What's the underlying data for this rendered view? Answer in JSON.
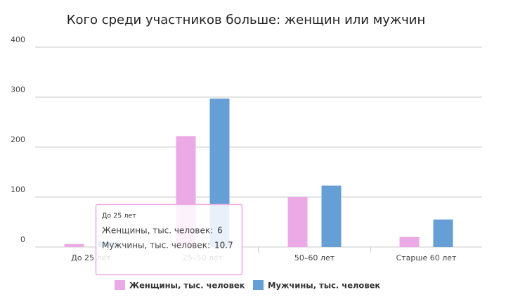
{
  "chart_data": {
    "type": "bar",
    "title": "Кого среди участников больше: женщин или мужчин",
    "categories": [
      "До 25 лет",
      "25–50 лет",
      "50–60 лет",
      "Старше 60 лет"
    ],
    "series": [
      {
        "name": "Женщины, тыс. человек",
        "color": "#ebaae6",
        "values": [
          6,
          222,
          100,
          20
        ]
      },
      {
        "name": "Мужчины, тыс. человек",
        "color": "#659fd6",
        "values": [
          10.7,
          297,
          123,
          55
        ]
      }
    ],
    "ylim": [
      0,
      400
    ],
    "yticks": [
      0,
      100,
      200,
      300,
      400
    ],
    "grid": true,
    "legend": "bottom",
    "tooltip": {
      "title": "До 25 лет",
      "items": [
        {
          "label": "Женщины, тыс. человек:",
          "value": 6,
          "color": "#ebaae6"
        },
        {
          "label": "Мужчины, тыс. человек:",
          "value": 10.7,
          "color": "#659fd6"
        }
      ]
    }
  }
}
